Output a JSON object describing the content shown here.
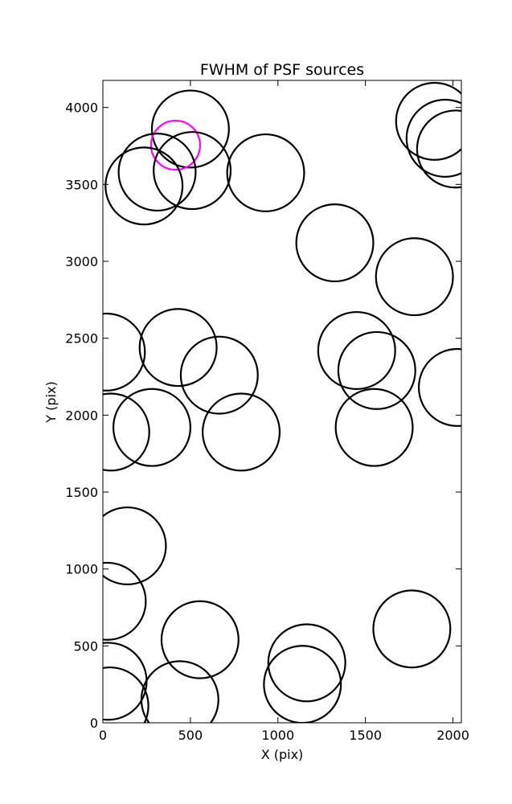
{
  "chart_data": {
    "type": "scatter",
    "title": "FWHM of PSF sources",
    "xlabel": "X (pix)",
    "ylabel": "Y (pix)",
    "xlim": [
      0,
      2048
    ],
    "ylim": [
      0,
      4176
    ],
    "xticks": [
      0,
      500,
      1000,
      1500,
      2000
    ],
    "yticks": [
      0,
      500,
      1000,
      1500,
      2000,
      2500,
      3000,
      3500,
      4000
    ],
    "grid": false,
    "marker_radius_pix": 220,
    "default_color": "#000000",
    "highlight_color": "#ff00ff",
    "sources": [
      {
        "x": 500,
        "y": 3860
      },
      {
        "x": 415,
        "y": 3755,
        "highlight": true,
        "radius_pix": 140
      },
      {
        "x": 310,
        "y": 3580
      },
      {
        "x": 510,
        "y": 3590
      },
      {
        "x": 235,
        "y": 3490
      },
      {
        "x": 930,
        "y": 3575
      },
      {
        "x": 1895,
        "y": 3910
      },
      {
        "x": 1955,
        "y": 3800
      },
      {
        "x": 2015,
        "y": 3730
      },
      {
        "x": 1325,
        "y": 3120
      },
      {
        "x": 1780,
        "y": 2900
      },
      {
        "x": 20,
        "y": 2410
      },
      {
        "x": 430,
        "y": 2440
      },
      {
        "x": 665,
        "y": 2260
      },
      {
        "x": 1450,
        "y": 2420
      },
      {
        "x": 1565,
        "y": 2290
      },
      {
        "x": 2025,
        "y": 2180
      },
      {
        "x": 45,
        "y": 1890
      },
      {
        "x": 280,
        "y": 1920
      },
      {
        "x": 790,
        "y": 1890
      },
      {
        "x": 1550,
        "y": 1920
      },
      {
        "x": 140,
        "y": 1150
      },
      {
        "x": 25,
        "y": 790
      },
      {
        "x": 555,
        "y": 540
      },
      {
        "x": 1165,
        "y": 390
      },
      {
        "x": 1140,
        "y": 250
      },
      {
        "x": 1765,
        "y": 610
      },
      {
        "x": 30,
        "y": 270
      },
      {
        "x": 440,
        "y": 150
      },
      {
        "x": 40,
        "y": 110
      }
    ]
  }
}
